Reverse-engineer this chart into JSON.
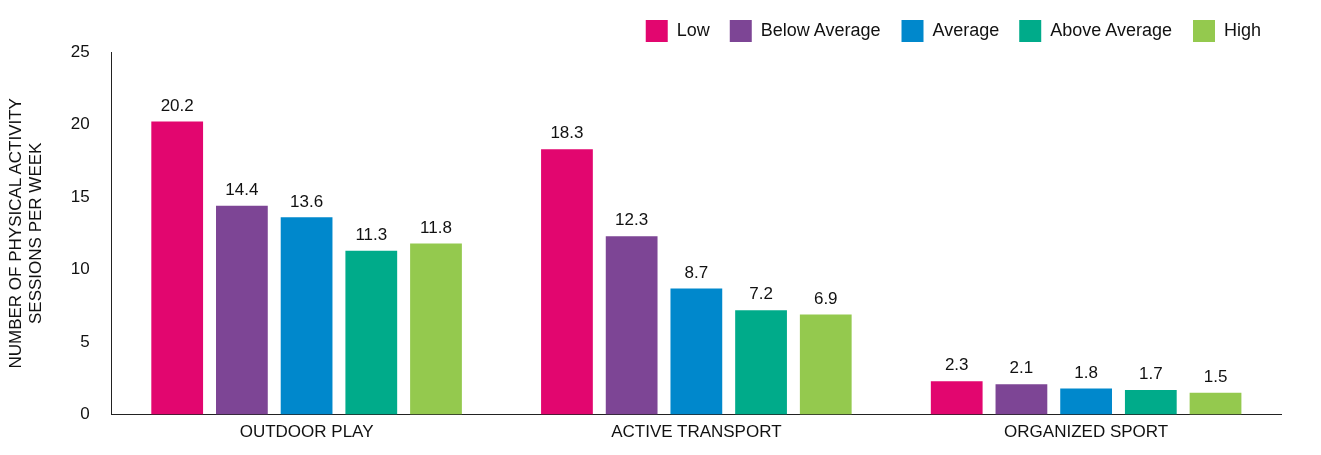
{
  "chart_data": {
    "type": "bar",
    "ylabel": "NUMBER OF PHYSICAL ACTIVITY SESSIONS PER WEEK",
    "categories": [
      "OUTDOOR PLAY",
      "ACTIVE TRANSPORT",
      "ORGANIZED SPORT"
    ],
    "series": [
      {
        "name": "Low",
        "color": "#e2066f",
        "values": [
          20.2,
          18.3,
          2.3
        ]
      },
      {
        "name": "Below Average",
        "color": "#7d4595",
        "values": [
          14.4,
          12.3,
          2.1
        ]
      },
      {
        "name": "Average",
        "color": "#0088cc",
        "values": [
          13.6,
          8.7,
          1.8
        ]
      },
      {
        "name": "Above Average",
        "color": "#00ab8a",
        "values": [
          11.3,
          7.2,
          1.7
        ]
      },
      {
        "name": "High",
        "color": "#94c94e",
        "values": [
          11.8,
          6.9,
          1.5
        ]
      }
    ],
    "ylim": [
      0,
      25
    ],
    "yticks": [
      0,
      5,
      10,
      15,
      20,
      25
    ],
    "grid": false,
    "legend": "top right",
    "data_labels": true
  }
}
